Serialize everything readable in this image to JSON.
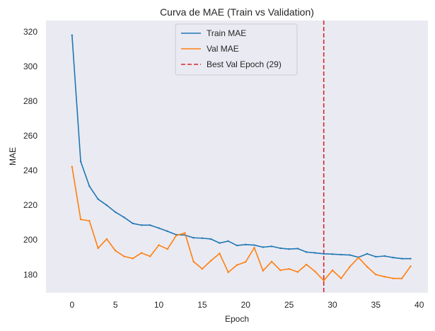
{
  "chart_data": {
    "type": "line",
    "title": "Curva de MAE (Train vs Validation)",
    "xlabel": "Epoch",
    "ylabel": "MAE",
    "xlim": [
      -3,
      41
    ],
    "ylim": [
      169.5,
      326.5
    ],
    "xticks": [
      0,
      5,
      10,
      15,
      20,
      25,
      30,
      35,
      40
    ],
    "yticks": [
      180,
      200,
      220,
      240,
      260,
      280,
      300,
      320
    ],
    "grid": false,
    "background": "#eaeaf2",
    "legend_position": "top-center",
    "x": [
      0,
      1,
      2,
      3,
      4,
      5,
      6,
      7,
      8,
      9,
      10,
      11,
      12,
      13,
      14,
      15,
      16,
      17,
      18,
      19,
      20,
      21,
      22,
      23,
      24,
      25,
      26,
      27,
      28,
      29,
      30,
      31,
      32,
      33,
      34,
      35,
      36,
      37,
      38,
      39
    ],
    "series": [
      {
        "name": "Train MAE",
        "color": "#1f77b4",
        "style": "solid",
        "values": [
          318.0,
          245.2,
          231.0,
          223.5,
          220.0,
          216.0,
          213.0,
          209.5,
          208.5,
          208.5,
          206.8,
          205.0,
          203.0,
          202.8,
          201.2,
          201.0,
          200.5,
          198.2,
          199.3,
          196.8,
          197.3,
          197.0,
          195.8,
          196.3,
          195.2,
          194.7,
          195.0,
          193.0,
          192.5,
          192.0,
          191.8,
          191.5,
          191.3,
          190.0,
          192.0,
          190.3,
          190.7,
          189.8,
          189.2,
          189.2
        ]
      },
      {
        "name": "Val MAE",
        "color": "#ff7f0e",
        "style": "solid",
        "values": [
          242.2,
          211.8,
          211.0,
          195.2,
          200.5,
          193.8,
          190.5,
          189.3,
          192.5,
          190.5,
          197.0,
          194.7,
          202.5,
          204.0,
          187.5,
          183.3,
          188.0,
          192.2,
          181.3,
          185.5,
          187.3,
          195.5,
          182.2,
          187.5,
          182.5,
          183.3,
          181.5,
          185.8,
          181.8,
          176.5,
          182.5,
          177.8,
          184.5,
          189.8,
          184.5,
          180.0,
          178.8,
          177.8,
          177.8,
          184.8
        ]
      },
      {
        "name": "Best Val Epoch (29)",
        "color": "#d62728",
        "style": "dashed",
        "type": "vline",
        "x": 29
      }
    ]
  }
}
